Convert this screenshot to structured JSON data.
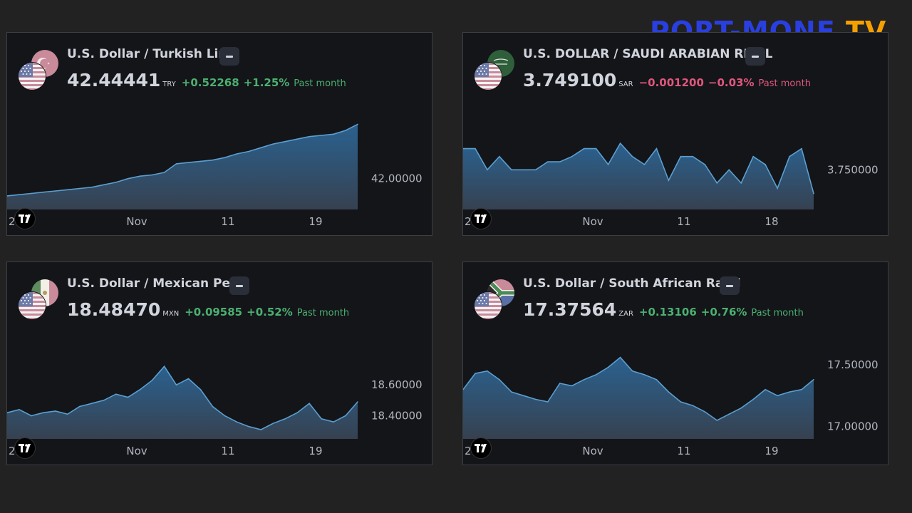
{
  "logo": {
    "part1": "PORT-MONE",
    "part2": "TV"
  },
  "colors": {
    "up": "#4caf70",
    "down": "#e0577c",
    "line": "#5b9fd0",
    "background": "#222222",
    "panel": "#131519"
  },
  "widgets": [
    {
      "title": "U.S. Dollar / Turkish Lira",
      "price": "42.44441",
      "currency": "TRY",
      "change": "+0.52268",
      "change_pct": "+1.25%",
      "period": "Past month",
      "direction": "up",
      "flag_back": "turkey-flag-icon",
      "flag_front": "us-flag-icon"
    },
    {
      "title": "U.S. DOLLAR / SAUDI ARABIAN RIYAL",
      "price": "3.749100",
      "currency": "SAR",
      "change": "−0.001200",
      "change_pct": "−0.03%",
      "period": "Past month",
      "direction": "down",
      "flag_back": "saudi-flag-icon",
      "flag_front": "us-flag-icon"
    },
    {
      "title": "U.S. Dollar / Mexican Peso",
      "price": "18.48470",
      "currency": "MXN",
      "change": "+0.09585",
      "change_pct": "+0.52%",
      "period": "Past month",
      "direction": "up",
      "flag_back": "mexico-flag-icon",
      "flag_front": "us-flag-icon"
    },
    {
      "title": "U.S. Dollar / South African Rand",
      "price": "17.37564",
      "currency": "ZAR",
      "change": "+0.13106",
      "change_pct": "+0.76%",
      "period": "Past month",
      "direction": "up",
      "flag_back": "south-africa-flag-icon",
      "flag_front": "us-flag-icon"
    }
  ],
  "chart_data": [
    {
      "type": "area",
      "title": "U.S. Dollar / Turkish Lira",
      "x_tick_labels": [
        "2",
        "Nov",
        "11",
        "19"
      ],
      "y_tick_labels": [
        "42.00000"
      ],
      "ylim": [
        41.75,
        42.5
      ],
      "x": [
        0,
        1,
        2,
        3,
        4,
        5,
        6,
        7,
        8,
        9,
        10,
        11,
        12,
        13,
        14,
        15,
        16,
        17,
        18,
        19,
        20,
        21,
        22,
        23,
        24,
        25,
        26,
        27,
        28,
        29
      ],
      "values": [
        41.86,
        41.87,
        41.88,
        41.89,
        41.9,
        41.91,
        41.92,
        41.93,
        41.95,
        41.97,
        42.0,
        42.02,
        42.03,
        42.05,
        42.12,
        42.13,
        42.14,
        42.15,
        42.17,
        42.2,
        42.22,
        42.25,
        42.28,
        42.3,
        42.32,
        42.34,
        42.35,
        42.36,
        42.39,
        42.44
      ],
      "grid": false
    },
    {
      "type": "area",
      "title": "U.S. DOLLAR / SAUDI ARABIAN RIYAL",
      "x_tick_labels": [
        "2",
        "Nov",
        "11",
        "18"
      ],
      "y_tick_labels": [
        "3.750000"
      ],
      "ylim": [
        3.7485,
        3.752
      ],
      "x": [
        0,
        1,
        2,
        3,
        4,
        5,
        6,
        7,
        8,
        9,
        10,
        11,
        12,
        13,
        14,
        15,
        16,
        17,
        18,
        19,
        20,
        21,
        22,
        23,
        24,
        25,
        26,
        27,
        28,
        29
      ],
      "values": [
        3.7508,
        3.7508,
        3.75,
        3.7505,
        3.75,
        3.75,
        3.75,
        3.7503,
        3.7503,
        3.7505,
        3.7508,
        3.7508,
        3.7502,
        3.751,
        3.7505,
        3.7502,
        3.7508,
        3.7496,
        3.7505,
        3.7505,
        3.7502,
        3.7495,
        3.75,
        3.7495,
        3.7505,
        3.7502,
        3.7493,
        3.7505,
        3.7508,
        3.7491
      ],
      "grid": false
    },
    {
      "type": "area",
      "title": "U.S. Dollar / Mexican Peso",
      "x_tick_labels": [
        "2",
        "Nov",
        "11",
        "19"
      ],
      "y_tick_labels": [
        "18.60000",
        "18.40000"
      ],
      "ylim": [
        18.25,
        18.85
      ],
      "x": [
        0,
        1,
        2,
        3,
        4,
        5,
        6,
        7,
        8,
        9,
        10,
        11,
        12,
        13,
        14,
        15,
        16,
        17,
        18,
        19,
        20,
        21,
        22,
        23,
        24,
        25,
        26,
        27,
        28,
        29
      ],
      "values": [
        18.42,
        18.44,
        18.4,
        18.42,
        18.43,
        18.41,
        18.46,
        18.48,
        18.5,
        18.54,
        18.52,
        18.57,
        18.63,
        18.72,
        18.6,
        18.64,
        18.57,
        18.46,
        18.4,
        18.36,
        18.33,
        18.31,
        18.35,
        18.38,
        18.42,
        18.48,
        18.38,
        18.36,
        18.4,
        18.49
      ],
      "grid": false
    },
    {
      "type": "area",
      "title": "U.S. Dollar / South African Rand",
      "x_tick_labels": [
        "2",
        "Nov",
        "11",
        "19"
      ],
      "y_tick_labels": [
        "17.50000",
        "17.00000"
      ],
      "ylim": [
        16.9,
        17.65
      ],
      "x": [
        0,
        1,
        2,
        3,
        4,
        5,
        6,
        7,
        8,
        9,
        10,
        11,
        12,
        13,
        14,
        15,
        16,
        17,
        18,
        19,
        20,
        21,
        22,
        23,
        24,
        25,
        26,
        27,
        28,
        29
      ],
      "values": [
        17.3,
        17.43,
        17.45,
        17.38,
        17.28,
        17.25,
        17.22,
        17.2,
        17.35,
        17.33,
        17.38,
        17.42,
        17.48,
        17.56,
        17.45,
        17.42,
        17.38,
        17.28,
        17.2,
        17.17,
        17.12,
        17.05,
        17.1,
        17.15,
        17.22,
        17.3,
        17.25,
        17.28,
        17.3,
        17.38
      ],
      "grid": false
    }
  ]
}
